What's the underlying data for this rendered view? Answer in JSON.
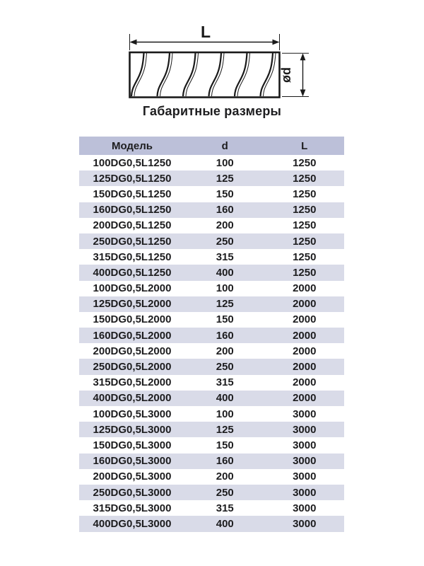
{
  "diagram": {
    "length_label": "L",
    "diameter_label": "ød"
  },
  "section_title": "Габаритные размеры",
  "table": {
    "columns": [
      "Модель",
      "d",
      "L"
    ],
    "rows": [
      [
        "100DG0,5L1250",
        "100",
        "1250"
      ],
      [
        "125DG0,5L1250",
        "125",
        "1250"
      ],
      [
        "150DG0,5L1250",
        "150",
        "1250"
      ],
      [
        "160DG0,5L1250",
        "160",
        "1250"
      ],
      [
        "200DG0,5L1250",
        "200",
        "1250"
      ],
      [
        "250DG0,5L1250",
        "250",
        "1250"
      ],
      [
        "315DG0,5L1250",
        "315",
        "1250"
      ],
      [
        "400DG0,5L1250",
        "400",
        "1250"
      ],
      [
        "100DG0,5L2000",
        "100",
        "2000"
      ],
      [
        "125DG0,5L2000",
        "125",
        "2000"
      ],
      [
        "150DG0,5L2000",
        "150",
        "2000"
      ],
      [
        "160DG0,5L2000",
        "160",
        "2000"
      ],
      [
        "200DG0,5L2000",
        "200",
        "2000"
      ],
      [
        "250DG0,5L2000",
        "250",
        "2000"
      ],
      [
        "315DG0,5L2000",
        "315",
        "2000"
      ],
      [
        "400DG0,5L2000",
        "400",
        "2000"
      ],
      [
        "100DG0,5L3000",
        "100",
        "3000"
      ],
      [
        "125DG0,5L3000",
        "125",
        "3000"
      ],
      [
        "150DG0,5L3000",
        "150",
        "3000"
      ],
      [
        "160DG0,5L3000",
        "160",
        "3000"
      ],
      [
        "200DG0,5L3000",
        "200",
        "3000"
      ],
      [
        "250DG0,5L3000",
        "250",
        "3000"
      ],
      [
        "315DG0,5L3000",
        "315",
        "3000"
      ],
      [
        "400DG0,5L3000",
        "400",
        "3000"
      ]
    ]
  },
  "colors": {
    "header_bg": "#bcc0d9",
    "stripe_bg": "#d9dbe8",
    "text": "#1d1d1f"
  }
}
